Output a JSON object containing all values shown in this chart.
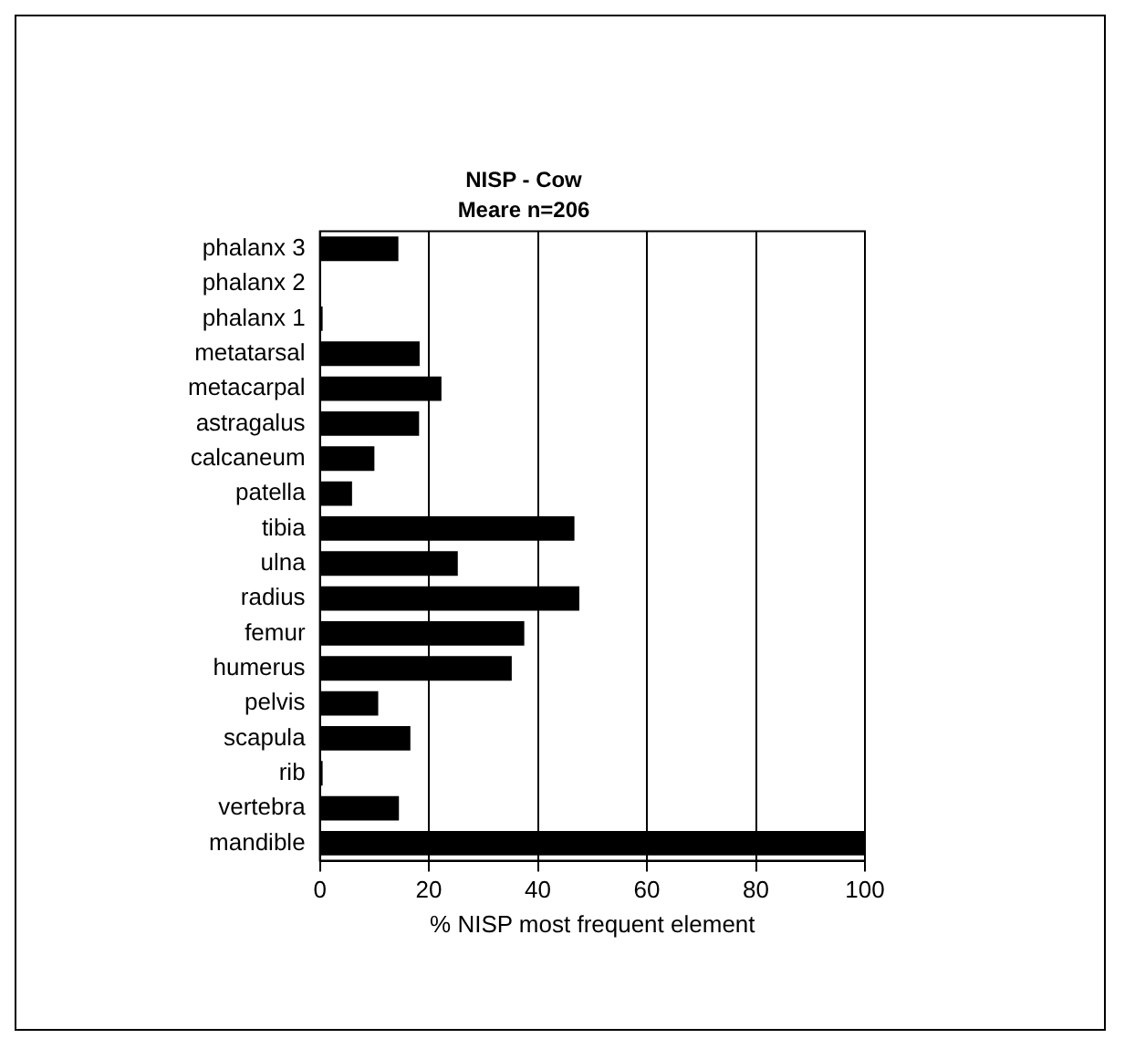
{
  "chart_data": {
    "type": "bar",
    "orientation": "horizontal",
    "title": "NISP - Cow",
    "subtitle": "Meare n=206",
    "xlabel": "% NISP most frequent element",
    "categories": [
      "phalanx 3",
      "phalanx 2",
      "phalanx 1",
      "metatarsal",
      "metacarpal",
      "astragalus",
      "calcaneum",
      "patella",
      "tibia",
      "ulna",
      "radius",
      "femur",
      "humerus",
      "pelvis",
      "scapula",
      "rib",
      "vertebra",
      "mandible"
    ],
    "values": [
      14.4,
      0,
      0.5,
      18.3,
      22.3,
      18.2,
      10,
      5.9,
      46.7,
      25.3,
      47.6,
      37.5,
      35.2,
      10.7,
      16.6,
      0.5,
      14.5,
      100
    ],
    "color": "#000000",
    "xlim": [
      0,
      100
    ],
    "xticks": [
      0,
      20,
      40,
      60,
      80,
      100
    ],
    "grid": "x",
    "legend": false
  }
}
